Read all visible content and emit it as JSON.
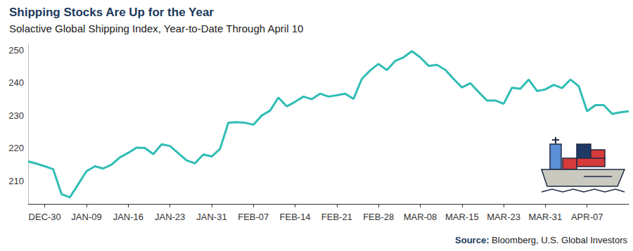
{
  "chart_data": {
    "type": "line",
    "title": "Shipping Stocks Are Up for the Year",
    "subtitle": "Solactive Global Shipping Index, Year-to-Date Through April 10",
    "source": "Source: Bloomberg, U.S. Global Investors",
    "categories": [
      null,
      null,
      "DEC-30",
      null,
      null,
      null,
      null,
      "JAN-09",
      null,
      null,
      null,
      null,
      "JAN-16",
      null,
      null,
      null,
      null,
      "JAN-23",
      null,
      null,
      null,
      null,
      "JAN-31",
      null,
      null,
      null,
      null,
      "FEB-07",
      null,
      null,
      null,
      null,
      "FEB-14",
      null,
      null,
      null,
      null,
      "FEB-21",
      null,
      null,
      null,
      null,
      "FEB-28",
      null,
      null,
      null,
      null,
      "MAR-08",
      null,
      null,
      null,
      null,
      "MAR-15",
      null,
      null,
      null,
      null,
      "MAR-23",
      null,
      null,
      null,
      null,
      "MAR-31",
      null,
      null,
      null,
      null,
      "APR-07",
      null,
      null,
      null,
      null,
      null
    ],
    "values": [
      216,
      215.3,
      214.5,
      213.6,
      206,
      205,
      209,
      213,
      214.5,
      213.8,
      215,
      217.2,
      218.6,
      220.2,
      220.1,
      218.2,
      221.2,
      220.7,
      218.5,
      216.3,
      215.4,
      218.1,
      217.5,
      219.8,
      227.8,
      228,
      227.8,
      227.2,
      230,
      231.5,
      235.5,
      232.8,
      234.2,
      235.8,
      235,
      236.7,
      235.8,
      236.2,
      236.7,
      235.1,
      241.2,
      243.8,
      245.8,
      243.9,
      246.7,
      247.8,
      249.7,
      247.8,
      245.2,
      245.5,
      244,
      241.2,
      238.6,
      239.9,
      237.2,
      234.6,
      234.6,
      233.6,
      238.5,
      238.2,
      241,
      237.5,
      238,
      239.4,
      238.4,
      241,
      239,
      231.3,
      233.2,
      233.2,
      230.5,
      231,
      231.3
    ],
    "color": "#30bdb6",
    "ylim": [
      203,
      252
    ],
    "yticks": [
      210,
      220,
      230,
      240,
      250
    ],
    "grid": false
  }
}
